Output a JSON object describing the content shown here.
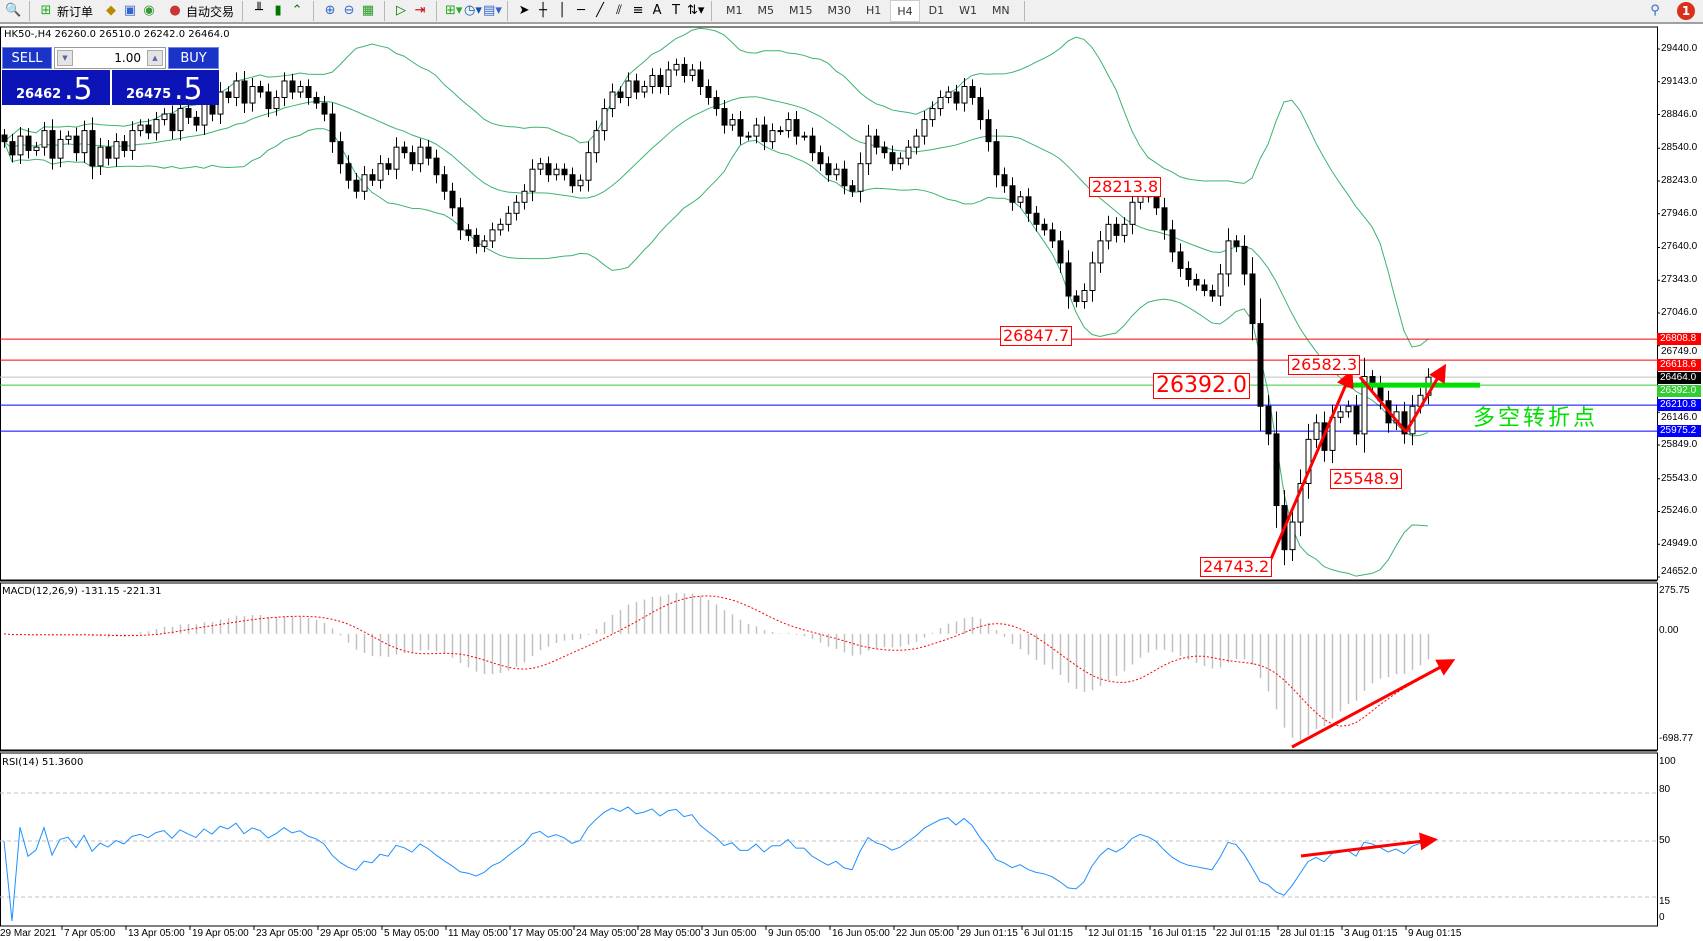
{
  "toolbar": {
    "new_order": "新订单",
    "auto_trading": "自动交易",
    "timeframes": [
      "M1",
      "M5",
      "M15",
      "M30",
      "H1",
      "H4",
      "D1",
      "W1",
      "MN"
    ],
    "selected_timeframe": "H4",
    "notifications": "1"
  },
  "chart_header": "HK50-,H4  26260.0 26510.0 26242.0 26464.0",
  "trade_panel": {
    "sell": "SELL",
    "buy": "BUY",
    "lots": "1.00",
    "bid_small": "26462",
    "bid_big": ".5",
    "ask_small": "26475",
    "ask_big": ".5"
  },
  "colors": {
    "bull": "#ffffff",
    "bear": "#000000",
    "bands": "#3cb371",
    "macd_hist": "#c0c0c0",
    "macd_signal": "#ff0000",
    "rsi": "#1e90ff",
    "annotation": "#ff0000",
    "pivot": "#00e000"
  },
  "chart_data": [
    {
      "type": "candlestick",
      "symbol": "HK50-",
      "timeframe": "H4",
      "indicator": "Bollinger Bands",
      "ylim": [
        24652.0,
        29440.0
      ],
      "y_ticks": [
        "29440.0",
        "29143.0",
        "28846.0",
        "28540.0",
        "28243.0",
        "27946.0",
        "27640.0",
        "27343.0",
        "27046.0",
        "26749.0",
        "26146.0",
        "25849.0",
        "25543.0",
        "25246.0",
        "24949.0",
        "24652.0"
      ],
      "x_ticks": [
        "29 Mar 2021",
        "7 Apr 05:00",
        "13 Apr 05:00",
        "19 Apr 05:00",
        "23 Apr 05:00",
        "29 Apr 05:00",
        "5 May 05:00",
        "11 May 05:00",
        "17 May 05:00",
        "24 May 05:00",
        "28 May 05:00",
        "3 Jun 05:00",
        "9 Jun 05:00",
        "16 Jun 05:00",
        "22 Jun 05:00",
        "29 Jun 01:15",
        "6 Jul 01:15",
        "12 Jul 01:15",
        "16 Jul 01:15",
        "22 Jul 01:15",
        "28 Jul 01:15",
        "3 Aug 01:15",
        "9 Aug 01:15"
      ],
      "closes": [
        28600,
        28480,
        28650,
        28520,
        28550,
        28700,
        28450,
        28620,
        28650,
        28500,
        28700,
        28380,
        28550,
        28450,
        28600,
        28520,
        28700,
        28750,
        28680,
        28800,
        28850,
        28700,
        28900,
        28820,
        28750,
        28950,
        28850,
        29050,
        29000,
        29150,
        28950,
        29100,
        29050,
        28900,
        29000,
        29150,
        29050,
        29100,
        29000,
        28950,
        28850,
        28600,
        28400,
        28250,
        28150,
        28300,
        28250,
        28400,
        28350,
        28550,
        28500,
        28400,
        28550,
        28450,
        28300,
        28150,
        28000,
        27800,
        27750,
        27650,
        27700,
        27800,
        27850,
        27950,
        28050,
        28150,
        28350,
        28400,
        28300,
        28350,
        28300,
        28200,
        28250,
        28500,
        28700,
        28900,
        29050,
        29000,
        29150,
        29050,
        29100,
        29200,
        29100,
        29250,
        29300,
        29200,
        29250,
        29100,
        29000,
        28900,
        28750,
        28800,
        28650,
        28650,
        28750,
        28600,
        28700,
        28700,
        28800,
        28650,
        28650,
        28500,
        28400,
        28300,
        28350,
        28200,
        28150,
        28400,
        28650,
        28550,
        28500,
        28400,
        28450,
        28550,
        28650,
        28800,
        28900,
        29000,
        29050,
        28950,
        29100,
        29000,
        28800,
        28600,
        28300,
        28200,
        28050,
        28100,
        27950,
        27850,
        27800,
        27700,
        27500,
        27200,
        27150,
        27250,
        27500,
        27700,
        27850,
        27750,
        27850,
        28050,
        28150,
        28100,
        28000,
        27800,
        27600,
        27450,
        27350,
        27300,
        27250,
        27200,
        27400,
        27700,
        27650,
        27400,
        26950,
        26200,
        25950,
        25300,
        24900,
        25150,
        25500,
        25900,
        26050,
        25800,
        26100,
        26150,
        26200,
        25950,
        26470,
        26400,
        26250,
        26050,
        26150,
        25950,
        26200,
        26300,
        26464
      ],
      "hlines": [
        {
          "price": 26808.8,
          "label": "26808.8",
          "color": "#ff0000"
        },
        {
          "price": 26618.6,
          "label": "26618.6",
          "color": "#ff0000"
        },
        {
          "price": 26464.0,
          "label": "26464.0",
          "color": "#000000",
          "line": "#c0c0c0"
        },
        {
          "price": 26392.0,
          "label": "26392.0",
          "color": "#32cd32"
        },
        {
          "price": 26210.8,
          "label": "26210.8",
          "color": "#0000ff"
        },
        {
          "price": 25975.2,
          "label": "25975.2",
          "color": "#0000ff"
        }
      ],
      "annotations": [
        "28213.8",
        "26847.7",
        "26582.3",
        "26392.0",
        "25548.9",
        "24743.2"
      ],
      "pivot_text": "多空转折点"
    },
    {
      "type": "bar+line",
      "title": "MACD(12,26,9) -131.15 -221.31",
      "ylim": [
        -698.77,
        275.75
      ],
      "y_ticks": [
        "275.75",
        "0.00",
        "-698.77"
      ]
    },
    {
      "type": "line",
      "title": "RSI(14) 51.3600",
      "ylim": [
        0,
        100
      ],
      "levels": [
        80,
        50,
        15
      ],
      "y_ticks": [
        "100",
        "80",
        "50",
        "15",
        "0"
      ]
    }
  ]
}
